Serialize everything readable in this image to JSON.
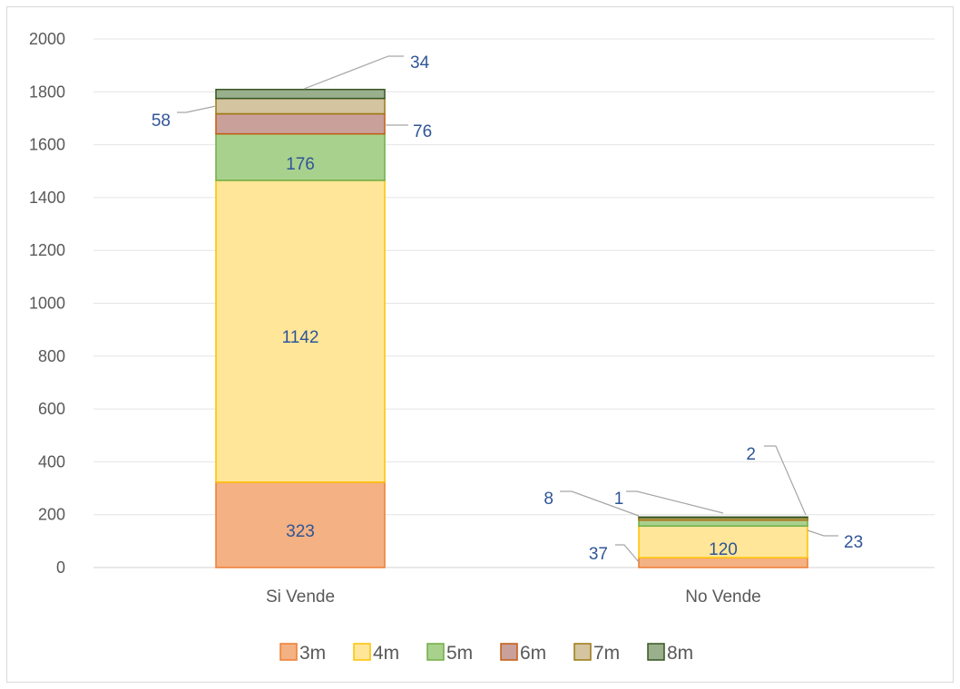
{
  "chart_data": {
    "type": "bar",
    "stacked": true,
    "categories": [
      "Si Vende",
      "No Vende"
    ],
    "series": [
      {
        "name": "3m",
        "values": [
          323,
          37
        ],
        "color": "#f4b183",
        "edge": "#ed7d31"
      },
      {
        "name": "4m",
        "values": [
          1142,
          120
        ],
        "color": "#ffe699",
        "edge": "#ffc000"
      },
      {
        "name": "5m",
        "values": [
          176,
          23
        ],
        "color": "#a9d18e",
        "edge": "#70ad47"
      },
      {
        "name": "6m",
        "values": [
          76,
          1
        ],
        "color": "#c9a09a",
        "edge": "#c55a11"
      },
      {
        "name": "7m",
        "values": [
          58,
          8
        ],
        "color": "#d4c4a0",
        "edge": "#9c7a12"
      },
      {
        "name": "8m",
        "values": [
          34,
          2
        ],
        "color": "#9aaf8b",
        "edge": "#375623"
      }
    ],
    "ylim": [
      0,
      2000
    ],
    "yticks": [
      0,
      200,
      400,
      600,
      800,
      1000,
      1200,
      1400,
      1600,
      1800,
      2000
    ],
    "grid": true,
    "legend": "bottom",
    "title": "",
    "xlabel": "",
    "ylabel": ""
  }
}
